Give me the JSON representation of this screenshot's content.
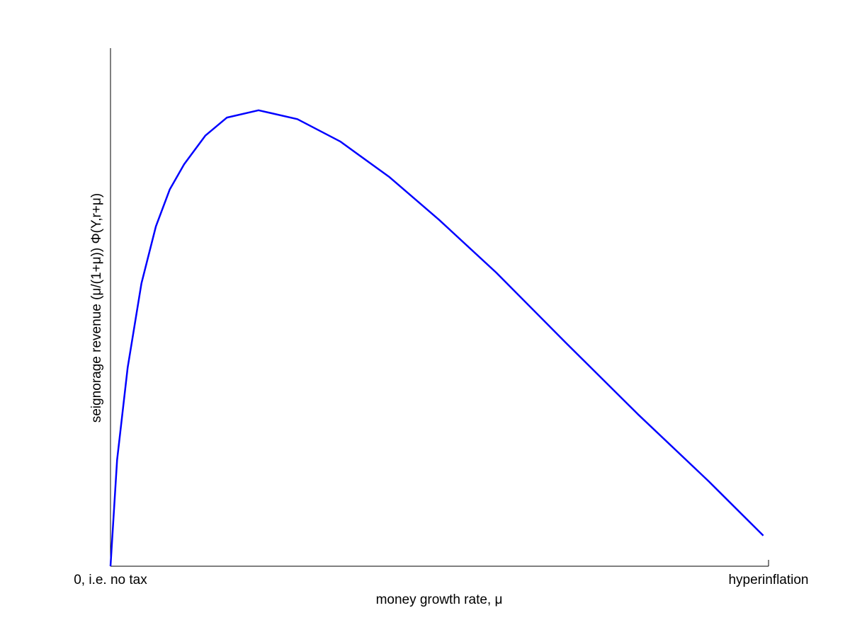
{
  "chart_data": {
    "type": "line",
    "x_label": "money growth rate, μ",
    "y_label": "seignorage revenue (μ/(1+μ)) Φ(Y,r+μ)",
    "x": [
      0,
      0.01,
      0.026,
      0.047,
      0.069,
      0.09,
      0.112,
      0.144,
      0.177,
      0.225,
      0.284,
      0.349,
      0.424,
      0.499,
      0.586,
      0.693,
      0.801,
      0.909,
      0.992
    ],
    "values": [
      0,
      0.205,
      0.383,
      0.546,
      0.656,
      0.727,
      0.776,
      0.831,
      0.866,
      0.88,
      0.863,
      0.82,
      0.751,
      0.669,
      0.567,
      0.43,
      0.294,
      0.164,
      0.059
    ],
    "color": "#0000ff",
    "xlim": [
      0,
      1
    ],
    "ylim": [
      0,
      1
    ],
    "xticks": [
      {
        "value": 0,
        "label": "0, i.e. no tax"
      },
      {
        "value": 1,
        "label": "hyperinflation"
      }
    ]
  }
}
